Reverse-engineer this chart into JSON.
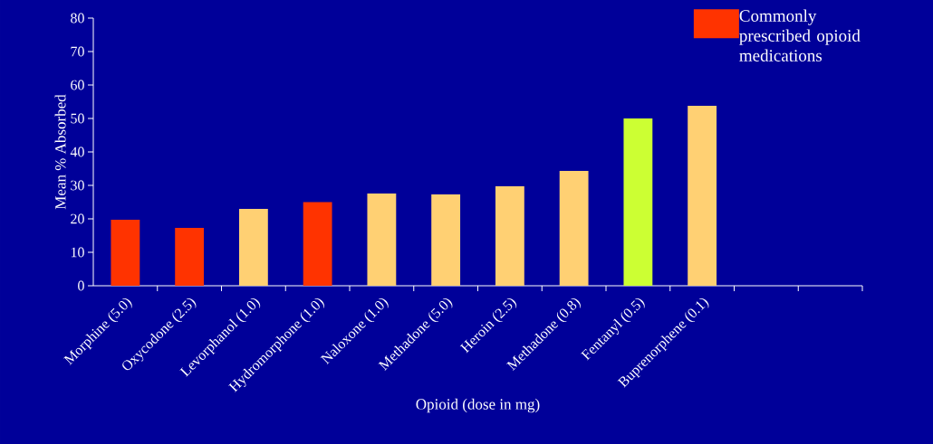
{
  "chart_data": {
    "type": "bar",
    "xlabel": "Opioid (dose in mg)",
    "ylabel": "Mean % Absorbed",
    "categories": [
      "Morphine (5.0)",
      "Oxycodone (2.5)",
      "Levorphanol (1.0)",
      "Hydromorphone (1.0)",
      "Naloxone (1.0)",
      "Methadone (5.0)",
      "Heroin (2.5)",
      "Methadone (0.8)",
      "Fentanyl (0.5)",
      "Buprenorphene (0.1)",
      null,
      null
    ],
    "series": [
      {
        "name": "Commonly prescribed opioid medications",
        "color": "#ff3300",
        "values": [
          19.7,
          17.3,
          null,
          25,
          null,
          null,
          null,
          null,
          null,
          null,
          null,
          null
        ]
      },
      {
        "color": "#ffd073",
        "values": [
          null,
          null,
          23,
          null,
          27.6,
          27.3,
          29.7,
          34.3,
          null,
          53.8,
          null,
          null
        ]
      },
      {
        "color": "#ccff33",
        "values": [
          null,
          null,
          null,
          null,
          null,
          null,
          null,
          null,
          50,
          null,
          null,
          null
        ]
      }
    ],
    "legend": "top right",
    "ylim": [
      0,
      80
    ],
    "yticks": [
      0,
      10,
      20,
      30,
      40,
      50,
      60,
      70,
      80
    ],
    "grid": false
  }
}
